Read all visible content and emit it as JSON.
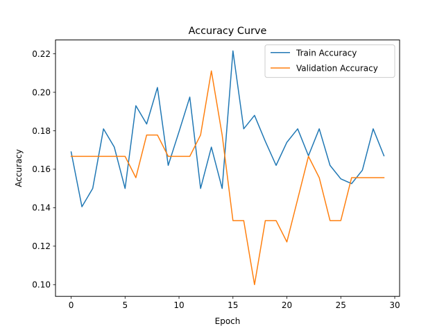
{
  "chart_data": {
    "type": "line",
    "title": "Accuracy Curve",
    "xlabel": "Epoch",
    "ylabel": "Accuracy",
    "xlim": [
      -1.45,
      30.45
    ],
    "ylim": [
      0.0939,
      0.2272
    ],
    "xticks": [
      0,
      5,
      10,
      15,
      20,
      25,
      30
    ],
    "yticks": [
      0.1,
      0.12,
      0.14,
      0.16,
      0.18,
      0.2,
      0.22
    ],
    "xtick_labels": [
      "0",
      "5",
      "10",
      "15",
      "20",
      "25",
      "30"
    ],
    "ytick_labels": [
      "0.10",
      "0.12",
      "0.14",
      "0.16",
      "0.18",
      "0.20",
      "0.22"
    ],
    "grid": false,
    "legend_position": "upper right",
    "x": [
      0,
      1,
      2,
      3,
      4,
      5,
      6,
      7,
      8,
      9,
      10,
      11,
      12,
      13,
      14,
      15,
      16,
      17,
      18,
      19,
      20,
      21,
      22,
      23,
      24,
      25,
      26,
      27,
      28,
      29
    ],
    "series": [
      {
        "name": "Train Accuracy",
        "color": "#1f77b4",
        "values": [
          0.169,
          0.1405,
          0.15,
          0.181,
          0.1715,
          0.15,
          0.193,
          0.1835,
          0.2025,
          0.162,
          0.1795,
          0.1975,
          0.15,
          0.1715,
          0.15,
          0.2215,
          0.181,
          0.188,
          0.1745,
          0.162,
          0.174,
          0.181,
          0.167,
          0.181,
          0.162,
          0.155,
          0.1525,
          0.1595,
          0.181,
          0.167
        ]
      },
      {
        "name": "Validation Accuracy",
        "color": "#ff7f0e",
        "values": [
          0.1667,
          0.1667,
          0.1667,
          0.1667,
          0.1667,
          0.1667,
          0.1556,
          0.1778,
          0.1778,
          0.1667,
          0.1667,
          0.1667,
          0.1778,
          0.2111,
          0.1778,
          0.1333,
          0.1333,
          0.1,
          0.1333,
          0.1333,
          0.1222,
          0.1444,
          0.1667,
          0.1556,
          0.1333,
          0.1333,
          0.1556,
          0.1556,
          0.1556,
          0.1556
        ]
      }
    ]
  }
}
